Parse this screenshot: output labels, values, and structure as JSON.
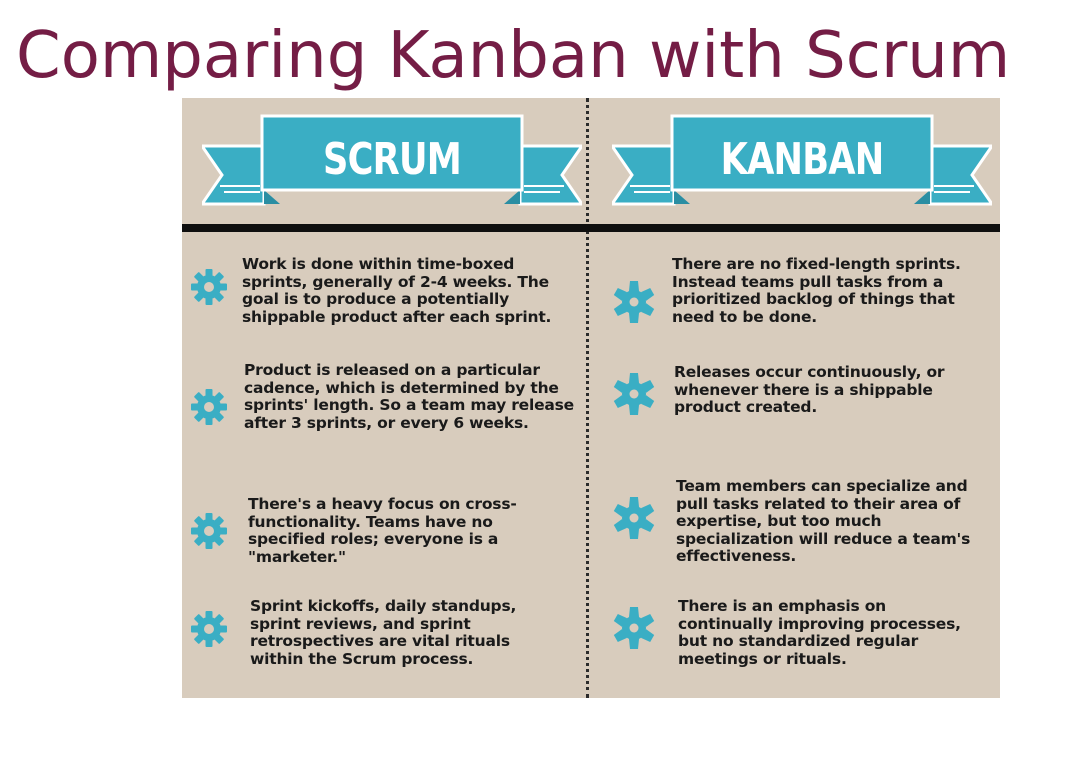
{
  "title": "Comparing Kanban with Scrum",
  "colors": {
    "title": "#741d45",
    "panel_bg": "#d8ccbd",
    "banner": "#3aaec4",
    "banner_dark": "#2a8ea3",
    "gear": "#3aaec4",
    "text": "#1a1a1a"
  },
  "columns": [
    {
      "heading": "SCRUM",
      "icon": "gear-icon",
      "items": [
        "Work is done within time-boxed sprints, generally of 2-4 weeks. The goal is to produce a potentially shippable product after each sprint.",
        "Product is released on a particular cadence, which is determined by the sprints' length. So a team may release after 3 sprints, or every 6 weeks.",
        "There's a heavy focus on cross-functionality. Teams have no specified roles; everyone is a \"marketer.\"",
        "Sprint kickoffs, daily standups, sprint reviews, and sprint retrospectives are vital rituals within the Scrum process."
      ]
    },
    {
      "heading": "KANBAN",
      "icon": "gear-icon",
      "items": [
        "There are no fixed-length sprints. Instead teams pull tasks from a prioritized backlog of things that need to be done.",
        "Releases occur continuously, or whenever there is a shippable product created.",
        "Team members can specialize and pull tasks related to their area of expertise, but too much specialization will reduce a team's effectiveness.",
        "There is an emphasis on continually improving processes, but no standardized regular meetings or rituals."
      ]
    }
  ]
}
